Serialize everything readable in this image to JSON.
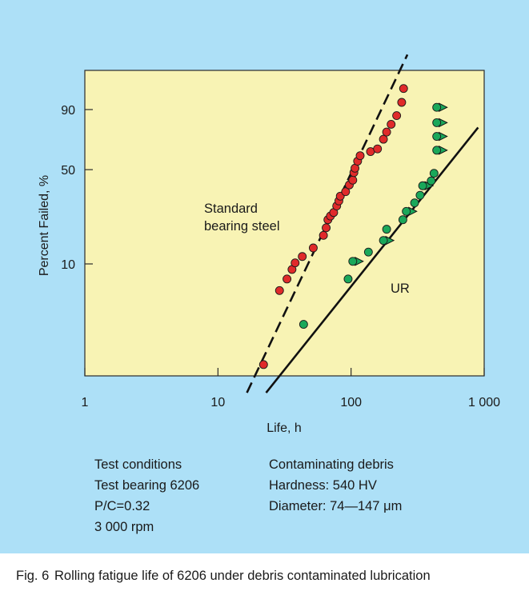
{
  "chart_data": {
    "type": "scatter",
    "title": "",
    "xlabel": "Life, h",
    "ylabel": "Percent Failed, %",
    "x_scale": "log",
    "y_scale": "weibull",
    "xlim": [
      1,
      1000
    ],
    "ylim": [
      0.6,
      99.9
    ],
    "x_ticks": [
      1,
      10,
      100,
      1000
    ],
    "x_tick_labels": [
      "1",
      "10",
      "100",
      "1 000"
    ],
    "y_ticks": [
      10,
      50,
      90
    ],
    "y_tick_labels": [
      "10",
      "50",
      "90"
    ],
    "grid": false,
    "background": "#f8f3b4",
    "series": [
      {
        "name": "Standard bearing steel",
        "color": "#e02a2a",
        "marker": "circle",
        "fit": {
          "style": "dashed",
          "from": [
            16.5,
            0.8
          ],
          "to": [
            265,
            99.9
          ]
        },
        "points": [
          [
            22,
            1.4
          ],
          [
            29,
            6.0
          ],
          [
            33,
            7.5
          ],
          [
            36,
            9.0
          ],
          [
            38,
            10.2
          ],
          [
            43,
            11.5
          ],
          [
            52,
            13.5
          ],
          [
            62,
            17
          ],
          [
            65,
            19.5
          ],
          [
            67,
            22.5
          ],
          [
            70,
            24
          ],
          [
            74,
            25.5
          ],
          [
            78,
            28.5
          ],
          [
            81,
            31
          ],
          [
            83,
            33.5
          ],
          [
            91,
            36
          ],
          [
            97,
            40
          ],
          [
            103,
            43
          ],
          [
            105,
            48
          ],
          [
            107,
            51
          ],
          [
            112,
            56
          ],
          [
            117,
            60
          ],
          [
            140,
            63
          ],
          [
            158,
            65
          ],
          [
            175,
            72
          ],
          [
            185,
            77
          ],
          [
            200,
            82
          ],
          [
            220,
            87
          ],
          [
            240,
            93
          ],
          [
            248,
            97
          ]
        ]
      },
      {
        "name": "UR",
        "color": "#1aa85a",
        "marker": "circle",
        "fit": {
          "style": "solid",
          "from": [
            23,
            0.8
          ],
          "to": [
            900,
            80
          ]
        },
        "points": [
          [
            44,
            3.1
          ],
          [
            95,
            7.5
          ],
          [
            103,
            10.5
          ],
          [
            135,
            12.5
          ],
          [
            175,
            15.5
          ],
          [
            185,
            19
          ],
          [
            245,
            22.5
          ],
          [
            260,
            26
          ],
          [
            300,
            30
          ],
          [
            330,
            34
          ],
          [
            345,
            39.5
          ],
          [
            400,
            42.5
          ],
          [
            420,
            47.5
          ],
          [
            440,
            64
          ],
          [
            440,
            74
          ],
          [
            440,
            83
          ],
          [
            440,
            91
          ]
        ],
        "suspended_points": [
          [
            103,
            10.5
          ],
          [
            175,
            15.5
          ],
          [
            260,
            26
          ],
          [
            345,
            39.5
          ],
          [
            440,
            64
          ],
          [
            440,
            74
          ],
          [
            440,
            83
          ],
          [
            440,
            91
          ]
        ]
      }
    ],
    "annotations": [
      {
        "text_lines": [
          "Standard",
          "bearing steel"
        ]
      },
      {
        "text_lines": [
          "UR"
        ]
      }
    ]
  },
  "conditions": {
    "left": [
      "Test conditions",
      "Test bearing 6206",
      "P/C=0.32",
      "3 000 rpm"
    ],
    "right": [
      "Contaminating debris",
      "Hardness: 540 HV",
      "Diameter: 74—147 μm"
    ]
  },
  "caption": {
    "label": "Fig. 6",
    "text": "Rolling fatigue life of 6206 under debris contaminated lubrication"
  }
}
